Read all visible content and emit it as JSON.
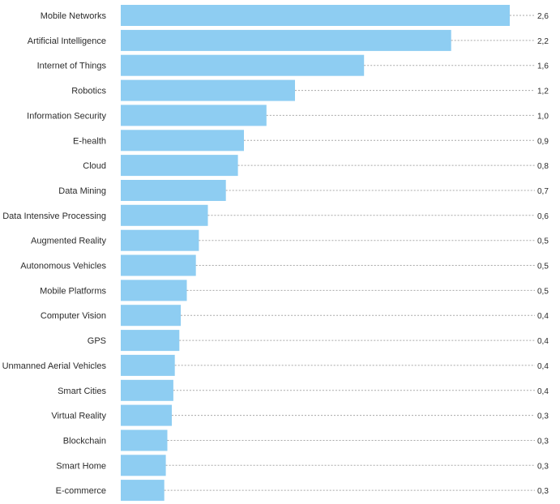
{
  "chart_data": {
    "type": "bar",
    "orientation": "horizontal",
    "title": "",
    "xlabel": "",
    "ylabel": "",
    "xlim": [
      0,
      2.9
    ],
    "grid": false,
    "legend": "none",
    "bar_color": "#8ecdf2",
    "categories": [
      "Mobile Networks",
      "Artificial Intelligence",
      "Internet of Things",
      "Robotics",
      "Information Security",
      "E-health",
      "Cloud",
      "Data Mining",
      "Data Intensive Processing",
      "Augmented Reality",
      "Autonomous Vehicles",
      "Mobile Platforms",
      "Computer Vision",
      "GPS",
      "Unmanned Aerial Vehicles",
      "Smart Cities",
      "Virtual Reality",
      "Blockchain",
      "Smart Home",
      "E-commerce"
    ],
    "values": [
      2.6,
      2.2,
      1.6,
      1.2,
      1.0,
      0.9,
      0.8,
      0.7,
      0.6,
      0.5,
      0.5,
      0.5,
      0.4,
      0.4,
      0.4,
      0.4,
      0.3,
      0.3,
      0.3,
      0.3
    ],
    "value_labels": [
      "2,6",
      "2,2",
      "1,6",
      "1,2",
      "1,0",
      "0,9",
      "0,8",
      "0,7",
      "0,6",
      "0,5",
      "0,5",
      "0,5",
      "0,4",
      "0,4",
      "0,4",
      "0,4",
      "0,3",
      "0,3",
      "0,3",
      "0,3"
    ],
    "display_lengths": [
      2.59,
      2.2,
      1.62,
      1.16,
      0.97,
      0.82,
      0.78,
      0.7,
      0.58,
      0.52,
      0.5,
      0.44,
      0.4,
      0.39,
      0.36,
      0.35,
      0.34,
      0.31,
      0.3,
      0.29
    ]
  }
}
